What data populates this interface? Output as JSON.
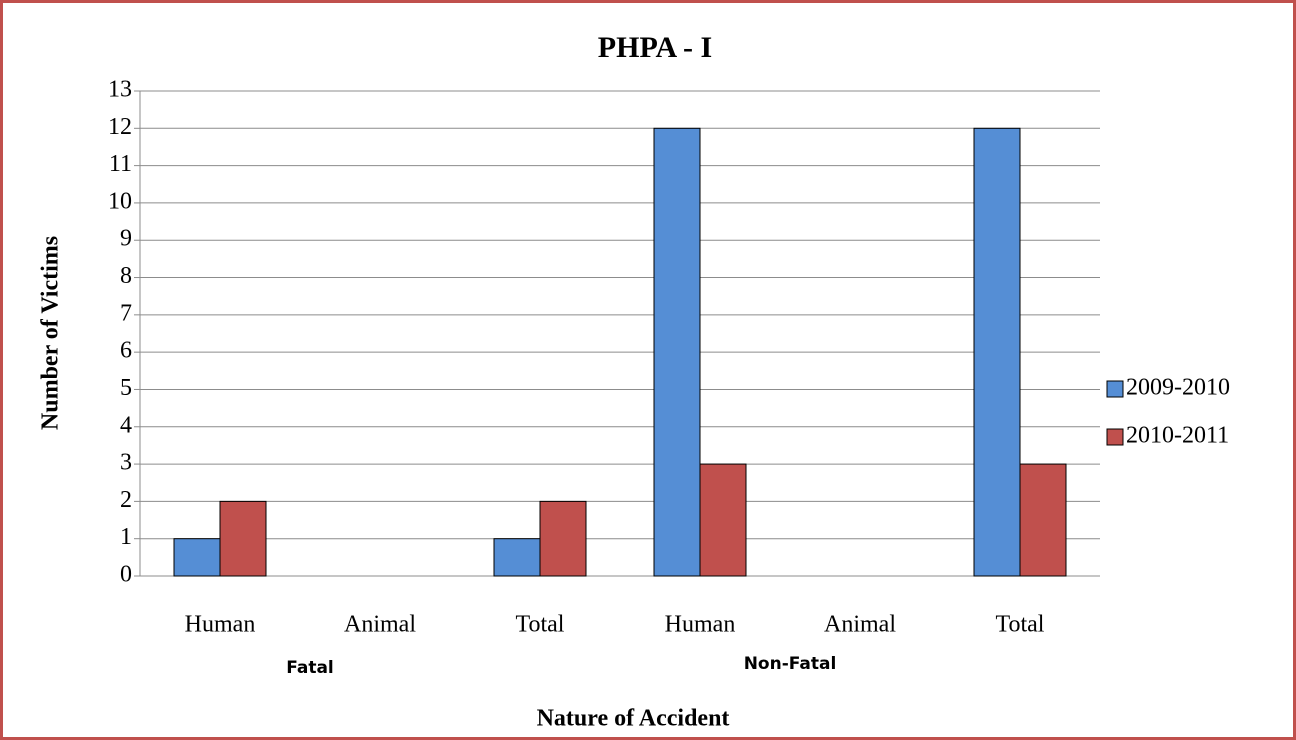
{
  "chart_data": {
    "type": "bar",
    "title": "PHPA - I",
    "y_label": "Number of Victims",
    "x_label": "Nature of Accident",
    "categories": [
      "Human",
      "Animal",
      "Total",
      "Human",
      "Animal",
      "Total"
    ],
    "group_labels": [
      "Fatal",
      "Non-Fatal"
    ],
    "series": [
      {
        "name": "2009-2010",
        "color": "#558ed5",
        "values": [
          1,
          0,
          1,
          12,
          0,
          12
        ]
      },
      {
        "name": "2010-2011",
        "color": "#c0504d",
        "values": [
          2,
          0,
          2,
          3,
          0,
          3
        ]
      }
    ],
    "ylim": [
      0,
      13
    ],
    "yticks": [
      0,
      1,
      2,
      3,
      4,
      5,
      6,
      7,
      8,
      9,
      10,
      11,
      12,
      13
    ],
    "grid": true,
    "legend": "right"
  }
}
